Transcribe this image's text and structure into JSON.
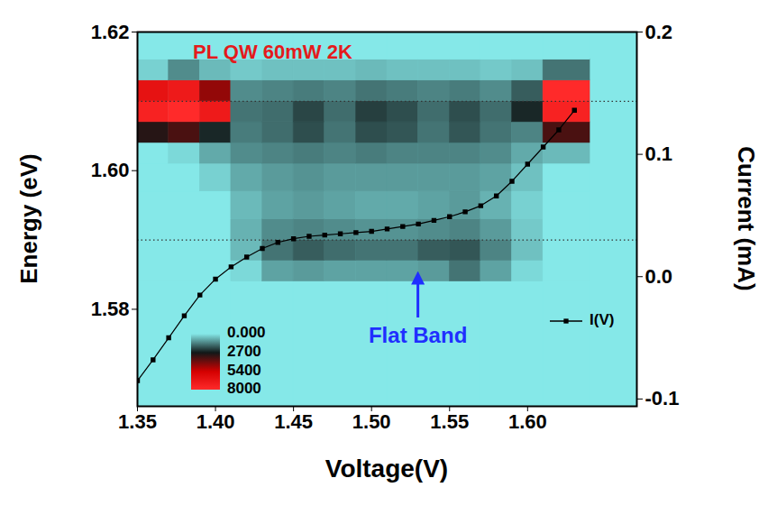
{
  "chart_data": {
    "type": "heatmap",
    "title": "PL QW 60mW 2K",
    "x_label": "Voltage(V)",
    "y_label": "Energy (eV)",
    "y2_label": "Current (mA)",
    "xlim": [
      1.35,
      1.67
    ],
    "xticks": [
      1.35,
      {
        "value": 1.4,
        "label": "1.40"
      },
      1.45,
      {
        "value": 1.5,
        "label": "1.50"
      },
      1.55,
      {
        "value": 1.6,
        "label": "1.60"
      }
    ],
    "ylim": [
      1.566,
      1.62
    ],
    "yticks": [
      1.58,
      {
        "value": 1.6,
        "label": "1.60"
      },
      1.62
    ],
    "y2lim": [
      -0.106,
      0.2
    ],
    "y2ticks": [
      -0.1,
      {
        "value": 0,
        "label": "0.0"
      },
      0.1,
      0.2
    ],
    "heatmap": {
      "x_edges": [
        1.35,
        1.37,
        1.39,
        1.41,
        1.43,
        1.45,
        1.47,
        1.49,
        1.51,
        1.53,
        1.55,
        1.57,
        1.59,
        1.61,
        1.64
      ],
      "y_edges": [
        1.566,
        1.584,
        1.587,
        1.59,
        1.593,
        1.597,
        1.601,
        1.604,
        1.607,
        1.61,
        1.613,
        1.616,
        1.62
      ],
      "values": [
        [
          0,
          0,
          0,
          0,
          0,
          0,
          0,
          0,
          0,
          0,
          0,
          0,
          0,
          0
        ],
        [
          0,
          0,
          0,
          200,
          900,
          1000,
          900,
          900,
          900,
          1000,
          1500,
          900,
          200,
          0
        ],
        [
          0,
          0,
          0,
          600,
          1500,
          1800,
          1600,
          1500,
          1500,
          1800,
          1900,
          1300,
          500,
          0
        ],
        [
          0,
          0,
          0,
          700,
          1200,
          1300,
          1200,
          1100,
          1100,
          1200,
          1300,
          1000,
          400,
          0
        ],
        [
          0,
          0,
          0,
          600,
          900,
          1000,
          900,
          800,
          800,
          900,
          1000,
          700,
          300,
          0
        ],
        [
          0,
          0,
          300,
          800,
          1000,
          1100,
          1000,
          1000,
          1000,
          1000,
          1000,
          900,
          500,
          0
        ],
        [
          0,
          200,
          800,
          1200,
          1300,
          1400,
          1300,
          1400,
          1300,
          1300,
          1300,
          1200,
          800,
          600
        ],
        [
          3000,
          3500,
          2500,
          1400,
          1600,
          2000,
          1500,
          2000,
          1900,
          1500,
          1900,
          1500,
          1300,
          3500
        ],
        [
          7500,
          8000,
          7000,
          1500,
          1600,
          2100,
          1600,
          2200,
          2000,
          1600,
          2000,
          1600,
          2500,
          7500
        ],
        [
          6500,
          7000,
          4500,
          1200,
          1300,
          1400,
          1300,
          1500,
          1400,
          1300,
          1400,
          1200,
          1800,
          8000
        ],
        [
          300,
          1200,
          600,
          400,
          500,
          500,
          500,
          600,
          500,
          500,
          500,
          400,
          500,
          1500
        ],
        [
          0,
          0,
          0,
          0,
          0,
          0,
          0,
          0,
          0,
          0,
          0,
          0,
          0,
          0
        ]
      ]
    },
    "colorbar": {
      "range": [
        0,
        8000
      ],
      "ticks": [
        {
          "value": 0,
          "label": "0.000"
        },
        2700,
        5400,
        8000
      ]
    },
    "reference_lines": [
      1.59,
      1.61
    ],
    "annotations": [
      {
        "text": "Flat Band",
        "x": 1.53
      }
    ],
    "series": [
      {
        "name": "I(V)",
        "type": "line",
        "color": "#000000",
        "marker": "square",
        "axis": "y2",
        "x": [
          1.35,
          1.36,
          1.37,
          1.38,
          1.39,
          1.4,
          1.41,
          1.42,
          1.43,
          1.44,
          1.45,
          1.46,
          1.47,
          1.48,
          1.49,
          1.5,
          1.51,
          1.52,
          1.53,
          1.54,
          1.55,
          1.56,
          1.57,
          1.58,
          1.59,
          1.6,
          1.61,
          1.62,
          1.63
        ],
        "values": [
          -0.085,
          -0.068,
          -0.05,
          -0.032,
          -0.015,
          -0.002,
          0.008,
          0.016,
          0.023,
          0.028,
          0.031,
          0.033,
          0.034,
          0.035,
          0.036,
          0.037,
          0.039,
          0.041,
          0.043,
          0.046,
          0.049,
          0.053,
          0.058,
          0.066,
          0.078,
          0.092,
          0.106,
          0.12,
          0.136
        ]
      }
    ],
    "legend": "bottom-right"
  }
}
